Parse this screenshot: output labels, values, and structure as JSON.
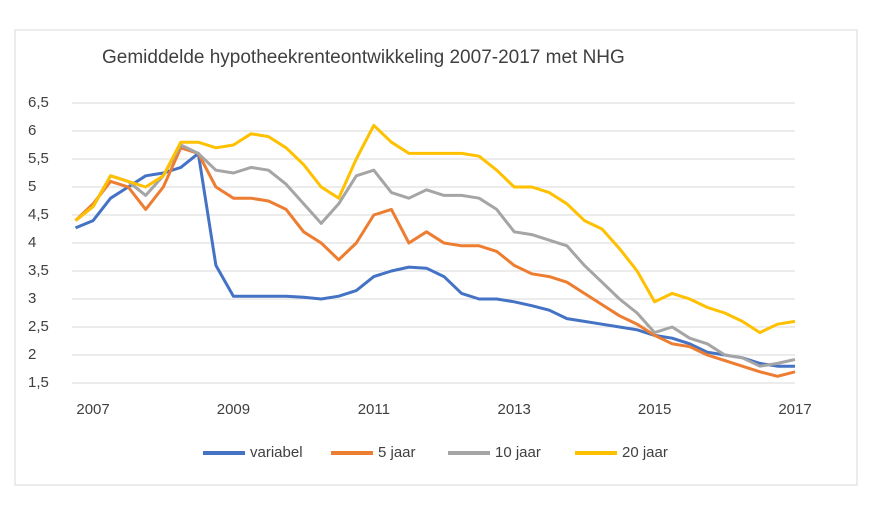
{
  "chart_data": {
    "type": "line",
    "title": "Gemiddelde hypotheekrenteontwikkeling 2007-2017 met NHG",
    "x": [
      2006.75,
      2007,
      2007.25,
      2007.5,
      2007.75,
      2008,
      2008.25,
      2008.5,
      2008.75,
      2009,
      2009.25,
      2009.5,
      2009.75,
      2010,
      2010.25,
      2010.5,
      2010.75,
      2011,
      2011.25,
      2011.5,
      2011.75,
      2012,
      2012.25,
      2012.5,
      2012.75,
      2013,
      2013.25,
      2013.5,
      2013.75,
      2014,
      2014.25,
      2014.5,
      2014.75,
      2015,
      2015.25,
      2015.5,
      2015.75,
      2016,
      2016.25,
      2016.5,
      2016.75,
      2017
    ],
    "series": [
      {
        "name": "variabel",
        "color": "#4472c4",
        "values": [
          4.27,
          4.4,
          4.8,
          5.0,
          5.2,
          5.25,
          5.35,
          5.6,
          3.6,
          3.05,
          3.05,
          3.05,
          3.05,
          3.03,
          3.0,
          3.05,
          3.15,
          3.4,
          3.5,
          3.57,
          3.55,
          3.4,
          3.1,
          3.0,
          3.0,
          2.95,
          2.88,
          2.8,
          2.65,
          2.6,
          2.55,
          2.5,
          2.45,
          2.35,
          2.3,
          2.2,
          2.05,
          2.0,
          1.95,
          1.85,
          1.8,
          1.8
        ]
      },
      {
        "name": "5 jaar",
        "color": "#ed7d31",
        "values": [
          4.4,
          4.7,
          5.1,
          5.0,
          4.6,
          5.0,
          5.7,
          5.6,
          5.0,
          4.8,
          4.8,
          4.75,
          4.6,
          4.2,
          4.0,
          3.7,
          4.0,
          4.5,
          4.6,
          4.0,
          4.2,
          4.0,
          3.95,
          3.95,
          3.85,
          3.6,
          3.45,
          3.4,
          3.3,
          3.1,
          2.9,
          2.7,
          2.55,
          2.35,
          2.2,
          2.15,
          2.0,
          1.9,
          1.8,
          1.7,
          1.62,
          1.7
        ]
      },
      {
        "name": "10 jaar",
        "color": "#a5a5a5",
        "values": [
          4.4,
          4.65,
          5.2,
          5.1,
          4.85,
          5.2,
          5.75,
          5.6,
          5.3,
          5.25,
          5.35,
          5.3,
          5.05,
          4.7,
          4.35,
          4.7,
          5.2,
          5.3,
          4.9,
          4.8,
          4.95,
          4.85,
          4.85,
          4.8,
          4.6,
          4.2,
          4.15,
          4.05,
          3.95,
          3.6,
          3.3,
          3.0,
          2.75,
          2.4,
          2.5,
          2.3,
          2.2,
          2.0,
          1.95,
          1.8,
          1.85,
          1.92
        ]
      },
      {
        "name": "20 jaar",
        "color": "#ffc000",
        "values": [
          4.4,
          4.65,
          5.2,
          5.1,
          5.0,
          5.2,
          5.8,
          5.8,
          5.7,
          5.75,
          5.95,
          5.9,
          5.7,
          5.4,
          5.0,
          4.8,
          5.5,
          6.1,
          5.8,
          5.6,
          5.6,
          5.6,
          5.6,
          5.55,
          5.3,
          5.0,
          5.0,
          4.9,
          4.7,
          4.4,
          4.25,
          3.9,
          3.5,
          2.95,
          3.1,
          3.0,
          2.85,
          2.75,
          2.6,
          2.4,
          2.55,
          2.6
        ]
      }
    ],
    "xlim": [
      2006.7,
      2017
    ],
    "xticks": [
      2007,
      2009,
      2011,
      2013,
      2015,
      2017
    ],
    "ylim": [
      1.5,
      6.5
    ],
    "yticks": [
      {
        "value": 1.5,
        "label": "1,5"
      },
      2,
      {
        "value": 2.5,
        "label": "2,5"
      },
      3,
      {
        "value": 3.5,
        "label": "3,5"
      },
      4,
      {
        "value": 4.5,
        "label": "4,5"
      },
      5,
      {
        "value": 5.5,
        "label": "5,5"
      },
      6,
      {
        "value": 6.5,
        "label": "6,5"
      }
    ],
    "grid": true,
    "legend": "bottom"
  }
}
